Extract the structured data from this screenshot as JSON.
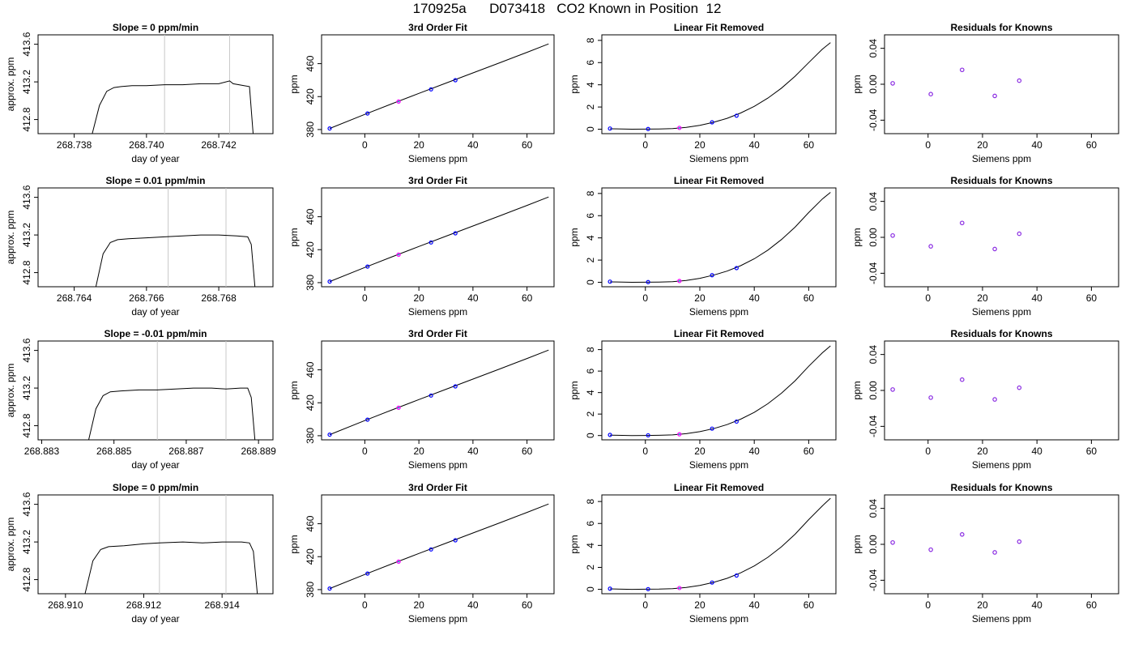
{
  "page": {
    "title": "170925a      D073418   CO2 Known in Position  12"
  },
  "colors": {
    "axis": "#000000",
    "trace": "#000000",
    "marker_line": "#c8c8c8",
    "point_blue": "#0000ff",
    "point_magenta": "#ff00ff",
    "point_cyan": "#00bcd4",
    "residual_point": "#8a2be2"
  },
  "chart_data": [
    {
      "type": "line",
      "row": 0,
      "col": 0,
      "title": "Slope =  0  ppm/min",
      "xlabel": "day of year",
      "ylabel": "approx. ppm",
      "xlim": [
        268.737,
        268.7435
      ],
      "ylim": [
        412.65,
        413.7
      ],
      "xticks": [
        268.738,
        268.74,
        268.742
      ],
      "xtick_labels": [
        "268.738",
        "268.740",
        "268.742"
      ],
      "yticks": [
        412.8,
        413.2,
        413.6
      ],
      "ytick_labels": [
        "412.8",
        "413.2",
        "413.6"
      ],
      "vlines": [
        268.7405,
        268.7423
      ],
      "x": [
        268.7385,
        268.7387,
        268.7389,
        268.7391,
        268.7393,
        268.7396,
        268.74,
        268.7405,
        268.741,
        268.7415,
        268.742,
        268.7423,
        268.7424,
        268.7427,
        268.74285,
        268.74295
      ],
      "y": [
        412.65,
        412.95,
        413.1,
        413.14,
        413.15,
        413.16,
        413.16,
        413.17,
        413.17,
        413.18,
        413.18,
        413.21,
        413.18,
        413.16,
        413.15,
        412.65
      ]
    },
    {
      "type": "scatter_line",
      "row": 0,
      "col": 1,
      "title": "3rd Order Fit",
      "xlabel": "Siemens ppm",
      "ylabel": "ppm",
      "xlim": [
        -16,
        70
      ],
      "ylim": [
        375,
        495
      ],
      "xticks": [
        0,
        20,
        40,
        60
      ],
      "yticks": [
        380,
        420,
        460
      ],
      "curve_x": [
        -13,
        0,
        10,
        20,
        30,
        40,
        50,
        60,
        68
      ],
      "curve_y": [
        381.3,
        398.4,
        411.3,
        423.9,
        436.4,
        448.8,
        461.2,
        473.8,
        484
      ],
      "points_x": [
        -13,
        1,
        12.5,
        24.5,
        33.5
      ],
      "points_y": [
        381.3,
        399.5,
        414,
        428.8,
        439.9
      ]
    },
    {
      "type": "scatter_line",
      "row": 0,
      "col": 2,
      "title": "Linear Fit Removed",
      "xlabel": "Siemens ppm",
      "ylabel": "ppm",
      "xlim": [
        -16,
        70
      ],
      "ylim": [
        -0.4,
        8.5
      ],
      "xticks": [
        0,
        20,
        40,
        60
      ],
      "yticks": [
        0,
        2,
        4,
        6,
        8
      ],
      "curve_x": [
        -13,
        -5,
        0,
        5,
        10,
        15,
        20,
        25,
        30,
        35,
        40,
        45,
        50,
        55,
        60,
        65,
        68
      ],
      "curve_y": [
        0.04,
        0,
        0.01,
        0.02,
        0.06,
        0.17,
        0.35,
        0.62,
        0.98,
        1.46,
        2.06,
        2.8,
        3.7,
        4.77,
        6.0,
        7.2,
        7.8
      ],
      "points_x": [
        -13,
        1,
        12.5,
        24.5,
        33.5
      ],
      "points_y": [
        0.06,
        0.02,
        0.12,
        0.62,
        1.22
      ]
    },
    {
      "type": "scatter",
      "row": 0,
      "col": 3,
      "title": "Residuals for Knowns",
      "xlabel": "Siemens ppm",
      "ylabel": "ppm",
      "xlim": [
        -16,
        70
      ],
      "ylim": [
        -0.055,
        0.055
      ],
      "xticks": [
        0,
        20,
        40,
        60
      ],
      "yticks": [
        -0.04,
        0.0,
        0.04
      ],
      "ytick_labels": [
        "-0.04",
        "0.00",
        "0.04"
      ],
      "points_x": [
        -13,
        1,
        12.5,
        24.5,
        33.5
      ],
      "points_y": [
        0.001,
        -0.011,
        0.016,
        -0.013,
        0.004
      ]
    },
    {
      "type": "line",
      "row": 1,
      "col": 0,
      "title": "Slope =  0.01  ppm/min",
      "xlabel": "day of year",
      "ylabel": "approx. ppm",
      "xlim": [
        268.763,
        268.7695
      ],
      "ylim": [
        412.65,
        413.7
      ],
      "xticks": [
        268.764,
        268.766,
        268.768
      ],
      "xtick_labels": [
        "268.764",
        "268.766",
        "268.768"
      ],
      "yticks": [
        412.8,
        413.2,
        413.6
      ],
      "ytick_labels": [
        "412.8",
        "413.2",
        "413.6"
      ],
      "vlines": [
        268.7666,
        268.7682
      ],
      "x": [
        268.7646,
        268.7648,
        268.765,
        268.7652,
        268.7655,
        268.766,
        268.7665,
        268.767,
        268.7675,
        268.768,
        268.7685,
        268.7688,
        268.7689,
        268.769
      ],
      "y": [
        412.65,
        413.0,
        413.12,
        413.15,
        413.16,
        413.17,
        413.18,
        413.19,
        413.2,
        413.2,
        413.19,
        413.18,
        413.1,
        412.65
      ]
    },
    {
      "type": "scatter_line",
      "row": 1,
      "col": 1,
      "title": "3rd Order Fit",
      "xlabel": "Siemens ppm",
      "ylabel": "ppm",
      "xlim": [
        -16,
        70
      ],
      "ylim": [
        375,
        495
      ],
      "xticks": [
        0,
        20,
        40,
        60
      ],
      "yticks": [
        380,
        420,
        460
      ],
      "curve_x": [
        -13,
        0,
        10,
        20,
        30,
        40,
        50,
        60,
        68
      ],
      "curve_y": [
        381.3,
        398.4,
        411.3,
        423.9,
        436.4,
        448.8,
        461.2,
        473.8,
        484
      ],
      "points_x": [
        -13,
        1,
        12.5,
        24.5,
        33.5
      ],
      "points_y": [
        381.3,
        399.5,
        414,
        428.8,
        439.9
      ]
    },
    {
      "type": "scatter_line",
      "row": 1,
      "col": 2,
      "title": "Linear Fit Removed",
      "xlabel": "Siemens ppm",
      "ylabel": "ppm",
      "xlim": [
        -16,
        70
      ],
      "ylim": [
        -0.4,
        8.5
      ],
      "xticks": [
        0,
        20,
        40,
        60
      ],
      "yticks": [
        0,
        2,
        4,
        6,
        8
      ],
      "curve_x": [
        -13,
        -5,
        0,
        5,
        10,
        15,
        20,
        25,
        30,
        35,
        40,
        45,
        50,
        55,
        60,
        65,
        68
      ],
      "curve_y": [
        0.04,
        0,
        0.01,
        0.02,
        0.06,
        0.17,
        0.36,
        0.64,
        1.01,
        1.5,
        2.12,
        2.9,
        3.85,
        4.97,
        6.28,
        7.5,
        8.1
      ],
      "points_x": [
        -13,
        1,
        12.5,
        24.5,
        33.5
      ],
      "points_y": [
        0.06,
        0.02,
        0.12,
        0.64,
        1.28
      ]
    },
    {
      "type": "scatter",
      "row": 1,
      "col": 3,
      "title": "Residuals for Knowns",
      "xlabel": "Siemens ppm",
      "ylabel": "ppm",
      "xlim": [
        -16,
        70
      ],
      "ylim": [
        -0.055,
        0.055
      ],
      "xticks": [
        0,
        20,
        40,
        60
      ],
      "yticks": [
        -0.04,
        0.0,
        0.04
      ],
      "ytick_labels": [
        "-0.04",
        "0.00",
        "0.04"
      ],
      "points_x": [
        -13,
        1,
        12.5,
        24.5,
        33.5
      ],
      "points_y": [
        0.002,
        -0.01,
        0.016,
        -0.013,
        0.004
      ]
    },
    {
      "type": "line",
      "row": 2,
      "col": 0,
      "title": "Slope =  -0.01  ppm/min",
      "xlabel": "day of year",
      "ylabel": "approx. ppm",
      "xlim": [
        268.8829,
        268.8894
      ],
      "ylim": [
        412.65,
        413.7
      ],
      "xticks": [
        268.883,
        268.885,
        268.887,
        268.889
      ],
      "xtick_labels": [
        "268.883",
        "268.885",
        "268.887",
        "268.889"
      ],
      "yticks": [
        412.8,
        413.2,
        413.6
      ],
      "ytick_labels": [
        "412.8",
        "413.2",
        "413.6"
      ],
      "vlines": [
        268.8862,
        268.8881
      ],
      "x": [
        268.8843,
        268.8845,
        268.8847,
        268.8849,
        268.8852,
        268.8857,
        268.8862,
        268.8867,
        268.8872,
        268.8877,
        268.8881,
        268.8885,
        268.8887,
        268.8888,
        268.8889
      ],
      "y": [
        412.65,
        412.98,
        413.12,
        413.16,
        413.17,
        413.18,
        413.18,
        413.19,
        413.2,
        413.2,
        413.19,
        413.2,
        413.2,
        413.1,
        412.65
      ]
    },
    {
      "type": "scatter_line",
      "row": 2,
      "col": 1,
      "title": "3rd Order Fit",
      "xlabel": "Siemens ppm",
      "ylabel": "ppm",
      "xlim": [
        -16,
        70
      ],
      "ylim": [
        375,
        495
      ],
      "xticks": [
        0,
        20,
        40,
        60
      ],
      "yticks": [
        380,
        420,
        460
      ],
      "curve_x": [
        -13,
        0,
        10,
        20,
        30,
        40,
        50,
        60,
        68
      ],
      "curve_y": [
        381.3,
        398.4,
        411.3,
        423.9,
        436.4,
        448.8,
        461.2,
        473.8,
        484
      ],
      "points_x": [
        -13,
        1,
        12.5,
        24.5,
        33.5
      ],
      "points_y": [
        381.3,
        399.5,
        414,
        428.8,
        439.9
      ]
    },
    {
      "type": "scatter_line",
      "row": 2,
      "col": 2,
      "title": "Linear Fit Removed",
      "xlabel": "Siemens ppm",
      "ylabel": "ppm",
      "xlim": [
        -16,
        70
      ],
      "ylim": [
        -0.4,
        8.8
      ],
      "xticks": [
        0,
        20,
        40,
        60
      ],
      "yticks": [
        0,
        2,
        4,
        6,
        8
      ],
      "curve_x": [
        -13,
        -5,
        0,
        5,
        10,
        15,
        20,
        25,
        30,
        35,
        40,
        45,
        50,
        55,
        60,
        65,
        68
      ],
      "curve_y": [
        0.04,
        0,
        0.01,
        0.02,
        0.06,
        0.17,
        0.36,
        0.64,
        1.02,
        1.52,
        2.16,
        2.96,
        3.94,
        5.1,
        6.45,
        7.7,
        8.35
      ],
      "points_x": [
        -13,
        1,
        12.5,
        24.5,
        33.5
      ],
      "points_y": [
        0.06,
        0.02,
        0.12,
        0.64,
        1.3
      ]
    },
    {
      "type": "scatter",
      "row": 2,
      "col": 3,
      "title": "Residuals for Knowns",
      "xlabel": "Siemens ppm",
      "ylabel": "ppm",
      "xlim": [
        -16,
        70
      ],
      "ylim": [
        -0.055,
        0.055
      ],
      "xticks": [
        0,
        20,
        40,
        60
      ],
      "yticks": [
        -0.04,
        0.0,
        0.04
      ],
      "ytick_labels": [
        "-0.04",
        "0.00",
        "0.04"
      ],
      "points_x": [
        -13,
        1,
        12.5,
        24.5,
        33.5
      ],
      "points_y": [
        0.001,
        -0.008,
        0.012,
        -0.01,
        0.003
      ]
    },
    {
      "type": "line",
      "row": 3,
      "col": 0,
      "title": "Slope =  0  ppm/min",
      "xlabel": "day of year",
      "ylabel": "approx. ppm",
      "xlim": [
        268.9093,
        268.9153
      ],
      "ylim": [
        412.65,
        413.7
      ],
      "xticks": [
        268.91,
        268.912,
        268.914
      ],
      "xtick_labels": [
        "268.910",
        "268.912",
        "268.914"
      ],
      "yticks": [
        412.8,
        413.2,
        413.6
      ],
      "ytick_labels": [
        "412.8",
        "413.2",
        "413.6"
      ],
      "vlines": [
        268.9124,
        268.9141
      ],
      "x": [
        268.9105,
        268.9107,
        268.9109,
        268.9111,
        268.9115,
        268.912,
        268.9124,
        268.913,
        268.9135,
        268.914,
        268.9145,
        268.9147,
        268.9148,
        268.9149
      ],
      "y": [
        412.65,
        413.0,
        413.12,
        413.15,
        413.16,
        413.18,
        413.19,
        413.2,
        413.19,
        413.2,
        413.2,
        413.19,
        413.1,
        412.65
      ]
    },
    {
      "type": "scatter_line",
      "row": 3,
      "col": 1,
      "title": "3rd Order Fit",
      "xlabel": "Siemens ppm",
      "ylabel": "ppm",
      "xlim": [
        -16,
        70
      ],
      "ylim": [
        375,
        495
      ],
      "xticks": [
        0,
        20,
        40,
        60
      ],
      "yticks": [
        380,
        420,
        460
      ],
      "curve_x": [
        -13,
        0,
        10,
        20,
        30,
        40,
        50,
        60,
        68
      ],
      "curve_y": [
        381.3,
        398.4,
        411.3,
        423.9,
        436.4,
        448.8,
        461.2,
        473.8,
        484
      ],
      "points_x": [
        -13,
        1,
        12.5,
        24.5,
        33.5
      ],
      "points_y": [
        381.3,
        399.5,
        414,
        428.8,
        439.9
      ]
    },
    {
      "type": "scatter_line",
      "row": 3,
      "col": 2,
      "title": "Linear Fit Removed",
      "xlabel": "Siemens ppm",
      "ylabel": "ppm",
      "xlim": [
        -16,
        70
      ],
      "ylim": [
        -0.4,
        8.6
      ],
      "xticks": [
        0,
        20,
        40,
        60
      ],
      "yticks": [
        0,
        2,
        4,
        6,
        8
      ],
      "curve_x": [
        -13,
        -5,
        0,
        5,
        10,
        15,
        20,
        25,
        30,
        35,
        40,
        45,
        50,
        55,
        60,
        65,
        68
      ],
      "curve_y": [
        0.04,
        0,
        0.01,
        0.02,
        0.06,
        0.17,
        0.36,
        0.63,
        1.0,
        1.5,
        2.13,
        2.92,
        3.88,
        5.02,
        6.35,
        7.6,
        8.3
      ],
      "points_x": [
        -13,
        1,
        12.5,
        24.5,
        33.5
      ],
      "points_y": [
        0.06,
        0.02,
        0.12,
        0.62,
        1.26
      ]
    },
    {
      "type": "scatter",
      "row": 3,
      "col": 3,
      "title": "Residuals for Knowns",
      "xlabel": "Siemens ppm",
      "ylabel": "ppm",
      "xlim": [
        -16,
        70
      ],
      "ylim": [
        -0.055,
        0.055
      ],
      "xticks": [
        0,
        20,
        40,
        60
      ],
      "yticks": [
        -0.04,
        0.0,
        0.04
      ],
      "ytick_labels": [
        "-0.04",
        "0.00",
        "0.04"
      ],
      "points_x": [
        -13,
        1,
        12.5,
        24.5,
        33.5
      ],
      "points_y": [
        0.002,
        -0.006,
        0.011,
        -0.009,
        0.003
      ]
    }
  ]
}
